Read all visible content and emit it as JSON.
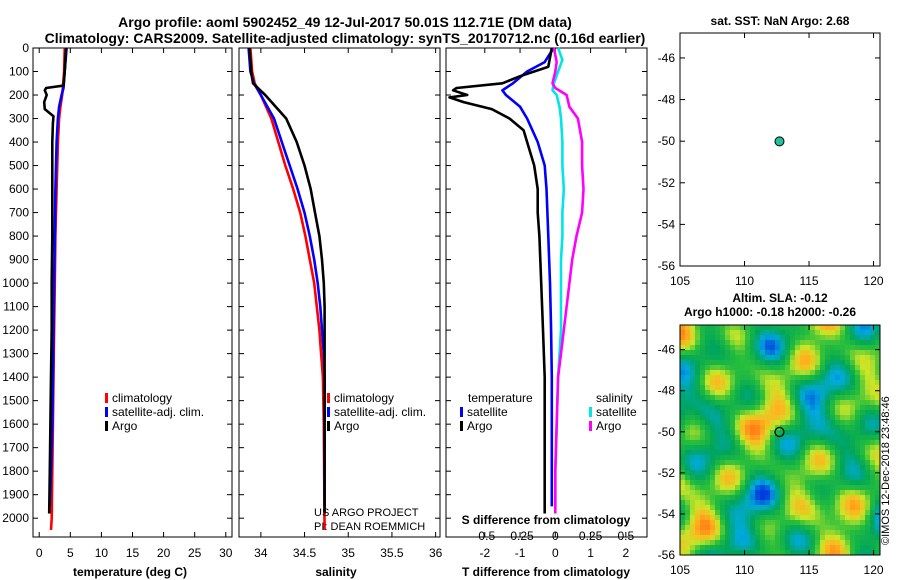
{
  "title_line1": "Argo profile: aoml 5902452_49 12-Jul-2017 50.01S 112.71E (DM data)",
  "title_line2": "Climatology: CARS2009. Satellite-adjusted climatology: synTS_20170712.nc (0.16d earlier)",
  "credit_line1": "US ARGO PROJECT",
  "credit_line2": "PI: DEAN ROEMMICH",
  "imos_label": "©IMOS 12-Dec-2018 23:48:46",
  "colors": {
    "climatology": "#ff0000",
    "satellite": "#0000ff",
    "argo": "#000000",
    "sal_satellite": "#00e5e5",
    "sal_argo": "#ff00ff"
  },
  "chart_data": [
    {
      "id": "temperature",
      "type": "line",
      "xlabel": "temperature (deg C)",
      "ylabel": "",
      "xlim": [
        -1,
        31
      ],
      "ylim": [
        2080,
        0
      ],
      "xticks": [
        "0",
        "5",
        "10",
        "15",
        "20",
        "25",
        "30"
      ],
      "xtick_values": [
        0,
        5,
        10,
        15,
        20,
        25,
        30
      ],
      "yticks": [
        "0",
        "100",
        "200",
        "300",
        "400",
        "500",
        "600",
        "700",
        "800",
        "900",
        "1000",
        "1100",
        "1200",
        "1300",
        "1400",
        "1500",
        "1600",
        "1700",
        "1800",
        "1900",
        "2000"
      ],
      "ytick_values": [
        0,
        100,
        200,
        300,
        400,
        500,
        600,
        700,
        800,
        900,
        1000,
        1100,
        1200,
        1300,
        1400,
        1500,
        1600,
        1700,
        1800,
        1900,
        2000
      ],
      "legend": [
        "climatology",
        "satellite-adj. clim.",
        "Argo"
      ],
      "series": [
        {
          "name": "climatology",
          "color": "#ff0000",
          "depth": [
            0,
            100,
            170,
            200,
            250,
            300,
            400,
            600,
            800,
            1000,
            1200,
            1400,
            1600,
            1800,
            2000,
            2050
          ],
          "values": [
            4.1,
            4.0,
            3.8,
            3.7,
            3.4,
            3.2,
            3.0,
            2.8,
            2.6,
            2.5,
            2.4,
            2.3,
            2.2,
            2.1,
            2.0,
            1.9
          ]
        },
        {
          "name": "satellite-adj. clim.",
          "color": "#0000ff",
          "depth": [
            0,
            100,
            170,
            200,
            250,
            300,
            400,
            600,
            800,
            1000,
            1200,
            1400,
            1600,
            1800,
            1950
          ],
          "values": [
            4.4,
            4.1,
            3.9,
            3.6,
            3.2,
            3.0,
            2.8,
            2.6,
            2.5,
            2.4,
            2.3,
            2.2,
            2.1,
            1.9,
            1.7
          ]
        },
        {
          "name": "Argo",
          "color": "#000000",
          "depth": [
            0,
            100,
            160,
            170,
            180,
            200,
            230,
            260,
            290,
            320,
            400,
            600,
            800,
            1000,
            1200,
            1400,
            1600,
            1800,
            1980
          ],
          "values": [
            4.3,
            4.1,
            3.9,
            1.1,
            0.9,
            1.2,
            0.8,
            0.9,
            2.3,
            2.2,
            2.1,
            2.1,
            2.1,
            2.0,
            2.0,
            1.9,
            1.8,
            1.7,
            1.6
          ]
        }
      ]
    },
    {
      "id": "salinity",
      "type": "line",
      "xlabel": "salinity",
      "xlim": [
        33.75,
        36.05
      ],
      "ylim": [
        2080,
        0
      ],
      "xticks": [
        "34",
        "34.5",
        "35",
        "35.5",
        "36"
      ],
      "xtick_values": [
        34,
        34.5,
        35,
        35.5,
        36
      ],
      "legend": [
        "climatology",
        "satellite-adj. clim.",
        "Argo"
      ],
      "series": [
        {
          "name": "climatology",
          "color": "#ff0000",
          "depth": [
            0,
            100,
            150,
            200,
            300,
            400,
            500,
            600,
            700,
            800,
            900,
            1000,
            1100,
            1200,
            1300,
            1400,
            1600,
            2050
          ],
          "values": [
            33.88,
            33.9,
            33.93,
            34.0,
            34.12,
            34.2,
            34.28,
            34.37,
            34.45,
            34.51,
            34.56,
            34.61,
            34.64,
            34.67,
            34.69,
            34.71,
            34.72,
            34.73
          ]
        },
        {
          "name": "satellite-adj. clim.",
          "color": "#0000ff",
          "depth": [
            0,
            100,
            150,
            200,
            300,
            400,
            500,
            600,
            700,
            800,
            900,
            1000,
            1100,
            1200,
            1300,
            1400,
            1600,
            1950
          ],
          "values": [
            33.86,
            33.88,
            33.92,
            34.0,
            34.15,
            34.24,
            34.33,
            34.42,
            34.5,
            34.56,
            34.61,
            34.65,
            34.68,
            34.7,
            34.72,
            34.73,
            34.73,
            34.73
          ]
        },
        {
          "name": "Argo",
          "color": "#000000",
          "depth": [
            0,
            100,
            150,
            200,
            300,
            400,
            500,
            600,
            700,
            800,
            900,
            1000,
            1100,
            1200,
            1400,
            1600,
            1980
          ],
          "values": [
            33.87,
            33.89,
            33.91,
            34.05,
            34.29,
            34.41,
            34.5,
            34.57,
            34.62,
            34.67,
            34.7,
            34.72,
            34.73,
            34.73,
            34.73,
            34.73,
            34.73
          ]
        }
      ]
    },
    {
      "id": "differences",
      "type": "line",
      "xlabel": "T difference from climatology",
      "xlabel_top": "S difference from climatology",
      "xlim_t": [
        -3.1,
        2.6
      ],
      "xlim_s": [
        -0.775,
        0.65
      ],
      "ylim": [
        2080,
        0
      ],
      "xticks_t": [
        "-2",
        "-1",
        "0",
        "1",
        "2"
      ],
      "xtick_values_t": [
        -2,
        -1,
        0,
        1,
        2
      ],
      "xticks_s": [
        "-0.5",
        "-0.25",
        "0",
        "0.25",
        "0.5"
      ],
      "xtick_values_s": [
        -0.5,
        -0.25,
        0,
        0.25,
        0.5
      ],
      "legend_temperature_title": "temperature",
      "legend_salinity_title": "salinity",
      "legend_temperature": [
        "satellite",
        "Argo"
      ],
      "legend_salinity": [
        "satellite",
        "Argo"
      ],
      "series": [
        {
          "name": "T satellite",
          "color": "#0000ff",
          "scale": "t",
          "depth": [
            0,
            60,
            100,
            150,
            170,
            180,
            200,
            250,
            300,
            400,
            500,
            600,
            800,
            1000,
            1200,
            1400,
            1600,
            1800,
            1950
          ],
          "values": [
            -0.05,
            -0.3,
            -0.8,
            -1.2,
            -1.4,
            -1.5,
            -1.4,
            -1.0,
            -0.8,
            -0.5,
            -0.3,
            -0.25,
            -0.2,
            -0.15,
            -0.12,
            -0.1,
            -0.1,
            -0.1,
            -0.1
          ]
        },
        {
          "name": "T Argo",
          "color": "#000000",
          "scale": "t",
          "depth": [
            0,
            80,
            100,
            120,
            150,
            170,
            180,
            190,
            200,
            210,
            230,
            260,
            300,
            350,
            400,
            500,
            600,
            700,
            800,
            1000,
            1200,
            1400,
            1600,
            1800,
            1980
          ],
          "values": [
            -0.1,
            -0.2,
            -0.6,
            -1.0,
            -1.5,
            -2.8,
            -2.9,
            -2.7,
            -2.5,
            -3.0,
            -2.6,
            -1.8,
            -1.3,
            -0.9,
            -0.8,
            -0.6,
            -0.5,
            -0.5,
            -0.45,
            -0.4,
            -0.35,
            -0.3,
            -0.3,
            -0.3,
            -0.3
          ]
        },
        {
          "name": "S satellite",
          "color": "#00e5e5",
          "scale": "s",
          "depth": [
            0,
            50,
            100,
            150,
            180,
            200,
            250,
            300,
            400,
            500,
            600,
            700,
            800,
            900,
            1000,
            1100,
            1200,
            1300,
            1400,
            1600,
            1800,
            1950
          ],
          "values": [
            0.02,
            0.05,
            0.02,
            -0.01,
            -0.02,
            0.01,
            0.03,
            0.04,
            0.05,
            0.05,
            0.06,
            0.05,
            0.05,
            0.04,
            0.04,
            0.04,
            0.04,
            0.03,
            0.02,
            0.01,
            0.0,
            0.0
          ]
        },
        {
          "name": "S Argo",
          "color": "#ff00ff",
          "scale": "s",
          "depth": [
            0,
            60,
            100,
            150,
            170,
            200,
            250,
            300,
            400,
            500,
            600,
            700,
            800,
            900,
            1000,
            1100,
            1200,
            1300,
            1400,
            1600,
            1800,
            1980
          ],
          "values": [
            -0.01,
            0.01,
            0.0,
            -0.02,
            0.0,
            0.08,
            0.1,
            0.16,
            0.19,
            0.19,
            0.2,
            0.19,
            0.15,
            0.12,
            0.1,
            0.08,
            0.06,
            0.04,
            0.02,
            0.01,
            0.0,
            0.0
          ]
        }
      ]
    },
    {
      "id": "sst_map",
      "type": "scatter",
      "title": "sat. SST: NaN Argo: 2.68",
      "xlim": [
        105,
        120.5
      ],
      "ylim": [
        -56,
        -44.8
      ],
      "xticks": [
        "105",
        "110",
        "115",
        "120"
      ],
      "xtick_values": [
        105,
        110,
        115,
        120
      ],
      "yticks": [
        "-46",
        "-48",
        "-50",
        "-52",
        "-54",
        "-56"
      ],
      "ytick_values": [
        -46,
        -48,
        -50,
        -52,
        -54,
        -56
      ],
      "points": [
        {
          "lon": 112.71,
          "lat": -50.01,
          "color": "#20c0a0"
        }
      ]
    },
    {
      "id": "sla_map",
      "type": "heatmap",
      "title_line1": "Altim. SLA: -0.12",
      "title_line2": "Argo h1000: -0.18 h2000: -0.26",
      "xlim": [
        105,
        120.5
      ],
      "ylim": [
        -56,
        -44.8
      ],
      "xticks": [
        "105",
        "110",
        "115",
        "120"
      ],
      "xtick_values": [
        105,
        110,
        115,
        120
      ],
      "yticks": [
        "-46",
        "-48",
        "-50",
        "-52",
        "-54",
        "-56"
      ],
      "ytick_values": [
        -46,
        -48,
        -50,
        -52,
        -54,
        -56
      ],
      "points": [
        {
          "lon": 112.71,
          "lat": -50.01
        }
      ]
    }
  ]
}
